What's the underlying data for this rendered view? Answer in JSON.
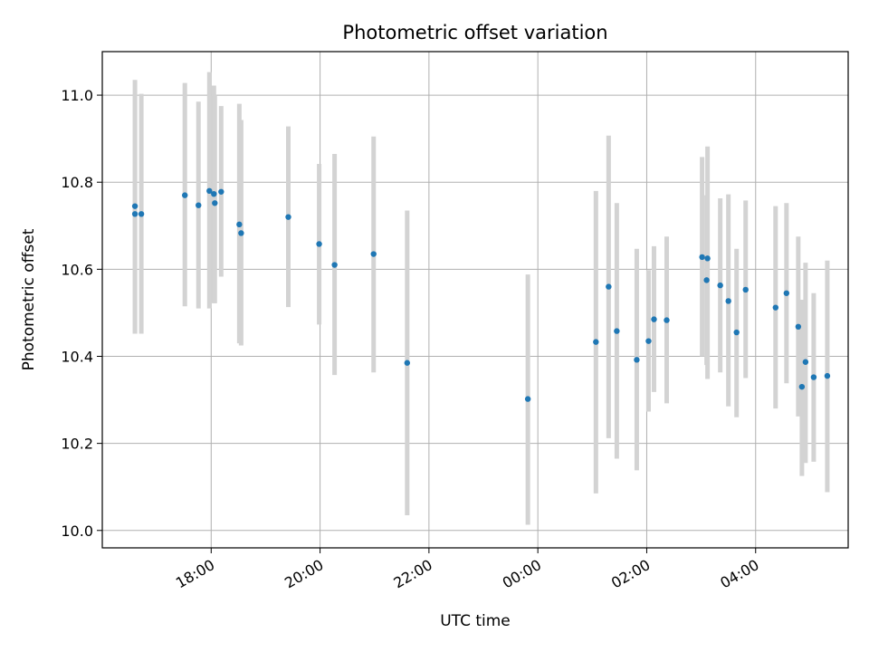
{
  "chart_data": {
    "type": "scatter",
    "title": "Photometric offset variation",
    "xlabel": "UTC time",
    "ylabel": "Photometric offset",
    "x_axis": {
      "type": "time",
      "range_hours": [
        16.0,
        29.7
      ],
      "ticks": [
        {
          "hour": 18,
          "label": "18:00"
        },
        {
          "hour": 20,
          "label": "20:00"
        },
        {
          "hour": 22,
          "label": "22:00"
        },
        {
          "hour": 24,
          "label": "00:00"
        },
        {
          "hour": 26,
          "label": "02:00"
        },
        {
          "hour": 28,
          "label": "04:00"
        }
      ]
    },
    "y_axis": {
      "range": [
        9.96,
        11.1
      ],
      "ticks": [
        {
          "value": 10.0,
          "label": "10.0"
        },
        {
          "value": 10.2,
          "label": "10.2"
        },
        {
          "value": 10.4,
          "label": "10.4"
        },
        {
          "value": 10.6,
          "label": "10.6"
        },
        {
          "value": 10.8,
          "label": "10.8"
        },
        {
          "value": 11.0,
          "label": "11.0"
        }
      ]
    },
    "grid": true,
    "marker_color": "#1f77b4",
    "errorbar_color": "#d3d3d3",
    "points": [
      {
        "t": "16:36",
        "y": 10.745,
        "lo": 10.452,
        "hi": 11.035
      },
      {
        "t": "16:36",
        "y": 10.727,
        "lo": 10.452,
        "hi": 11.0
      },
      {
        "t": "16:43",
        "y": 10.727,
        "lo": 10.452,
        "hi": 11.003
      },
      {
        "t": "17:31",
        "y": 10.77,
        "lo": 10.515,
        "hi": 11.028
      },
      {
        "t": "17:46",
        "y": 10.747,
        "lo": 10.51,
        "hi": 10.985
      },
      {
        "t": "17:58",
        "y": 10.78,
        "lo": 10.51,
        "hi": 11.053
      },
      {
        "t": "18:03",
        "y": 10.773,
        "lo": 10.522,
        "hi": 11.022
      },
      {
        "t": "18:04",
        "y": 10.752,
        "lo": 10.522,
        "hi": 11.0
      },
      {
        "t": "18:11",
        "y": 10.778,
        "lo": 10.583,
        "hi": 10.975
      },
      {
        "t": "18:31",
        "y": 10.703,
        "lo": 10.43,
        "hi": 10.98
      },
      {
        "t": "18:33",
        "y": 10.683,
        "lo": 10.425,
        "hi": 10.943
      },
      {
        "t": "19:25",
        "y": 10.72,
        "lo": 10.513,
        "hi": 10.928
      },
      {
        "t": "19:59",
        "y": 10.658,
        "lo": 10.473,
        "hi": 10.842
      },
      {
        "t": "20:16",
        "y": 10.61,
        "lo": 10.357,
        "hi": 10.865
      },
      {
        "t": "20:59",
        "y": 10.635,
        "lo": 10.363,
        "hi": 10.905
      },
      {
        "t": "21:36",
        "y": 10.385,
        "lo": 10.035,
        "hi": 10.735
      },
      {
        "t": "23:49",
        "y": 10.302,
        "lo": 10.013,
        "hi": 10.588
      },
      {
        "t": "01:04",
        "y": 10.433,
        "lo": 10.085,
        "hi": 10.78
      },
      {
        "t": "01:18",
        "y": 10.56,
        "lo": 10.212,
        "hi": 10.907
      },
      {
        "t": "01:27",
        "y": 10.458,
        "lo": 10.165,
        "hi": 10.752
      },
      {
        "t": "01:49",
        "y": 10.392,
        "lo": 10.138,
        "hi": 10.647
      },
      {
        "t": "02:02",
        "y": 10.435,
        "lo": 10.273,
        "hi": 10.598
      },
      {
        "t": "02:08",
        "y": 10.485,
        "lo": 10.318,
        "hi": 10.653
      },
      {
        "t": "02:22",
        "y": 10.483,
        "lo": 10.292,
        "hi": 10.675
      },
      {
        "t": "03:01",
        "y": 10.628,
        "lo": 10.4,
        "hi": 10.858
      },
      {
        "t": "03:06",
        "y": 10.575,
        "lo": 10.38,
        "hi": 10.77
      },
      {
        "t": "03:07",
        "y": 10.625,
        "lo": 10.348,
        "hi": 10.882
      },
      {
        "t": "03:21",
        "y": 10.563,
        "lo": 10.363,
        "hi": 10.763
      },
      {
        "t": "03:30",
        "y": 10.527,
        "lo": 10.285,
        "hi": 10.772
      },
      {
        "t": "03:39",
        "y": 10.455,
        "lo": 10.26,
        "hi": 10.647
      },
      {
        "t": "03:49",
        "y": 10.553,
        "lo": 10.35,
        "hi": 10.758
      },
      {
        "t": "04:22",
        "y": 10.512,
        "lo": 10.28,
        "hi": 10.745
      },
      {
        "t": "04:34",
        "y": 10.545,
        "lo": 10.338,
        "hi": 10.752
      },
      {
        "t": "04:47",
        "y": 10.468,
        "lo": 10.262,
        "hi": 10.675
      },
      {
        "t": "04:51",
        "y": 10.33,
        "lo": 10.125,
        "hi": 10.53
      },
      {
        "t": "04:55",
        "y": 10.387,
        "lo": 10.155,
        "hi": 10.615
      },
      {
        "t": "05:04",
        "y": 10.352,
        "lo": 10.158,
        "hi": 10.545
      },
      {
        "t": "05:19",
        "y": 10.355,
        "lo": 10.088,
        "hi": 10.62
      }
    ]
  }
}
